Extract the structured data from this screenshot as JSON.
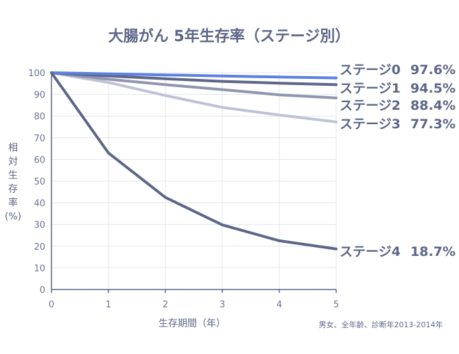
{
  "chart_data": {
    "type": "line",
    "title": "大腸がん 5年生存率（ステージ別）",
    "xlabel": "生存期間（年）",
    "ylabel": [
      "相",
      "対",
      "生",
      "存",
      "率",
      "(%)"
    ],
    "note": "男女、全年齢、診断年2013-2014年",
    "x": [
      0,
      1,
      2,
      3,
      4,
      5
    ],
    "xlim": [
      0,
      5
    ],
    "ylim": [
      0,
      100
    ],
    "yticks": [
      0,
      10,
      20,
      30,
      40,
      50,
      60,
      70,
      80,
      90,
      100
    ],
    "grid": true,
    "series": [
      {
        "name": "ステージ0",
        "end_value_label": "97.6%",
        "color": "#5b80e0",
        "values": [
          100,
          99.5,
          99.0,
          98.5,
          98.0,
          97.6
        ]
      },
      {
        "name": "ステージ1",
        "end_value_label": "94.5%",
        "color": "#5d6687",
        "values": [
          100,
          98.5,
          97.2,
          96.0,
          95.2,
          94.5
        ]
      },
      {
        "name": "ステージ2",
        "end_value_label": "88.4%",
        "color": "#9096ae",
        "values": [
          100,
          97.0,
          94.5,
          92.2,
          89.8,
          88.4
        ]
      },
      {
        "name": "ステージ3",
        "end_value_label": "77.3%",
        "color": "#bfc2d6",
        "values": [
          100,
          95.5,
          89.5,
          84.0,
          80.5,
          77.3
        ]
      },
      {
        "name": "ステージ4",
        "end_value_label": "18.7%",
        "color": "#5d6687",
        "values": [
          100,
          63.0,
          42.5,
          29.8,
          22.5,
          18.7
        ]
      }
    ]
  }
}
